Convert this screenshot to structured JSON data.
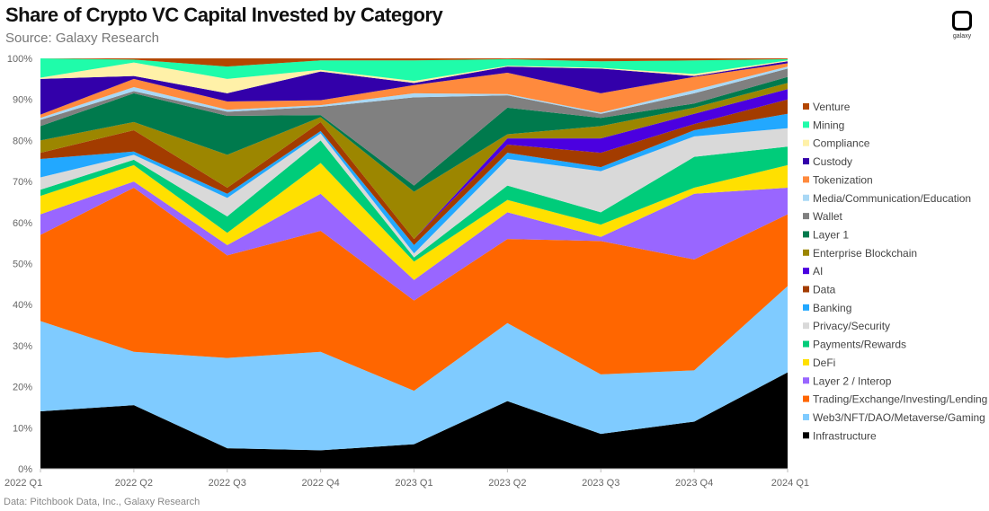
{
  "header": {
    "title": "Share of Crypto VC Capital Invested by Category",
    "subtitle": "Source: Galaxy Research",
    "logo_text": "galaxy"
  },
  "footer": {
    "source": "Data: Pitchbook Data, Inc., Galaxy Research"
  },
  "chart_data": {
    "type": "area",
    "stacked": true,
    "title": "Share of Crypto VC Capital Invested by Category",
    "xlabel": "",
    "ylabel": "",
    "ylim": [
      0,
      100
    ],
    "y_ticks": [
      "0%",
      "10%",
      "20%",
      "30%",
      "40%",
      "50%",
      "60%",
      "70%",
      "80%",
      "90%",
      "100%"
    ],
    "categories": [
      "2022 Q1",
      "2022 Q2",
      "2022 Q3",
      "2022 Q4",
      "2023 Q1",
      "2023 Q2",
      "2023 Q3",
      "2023 Q4",
      "2024 Q1"
    ],
    "legend_position": "right",
    "series": [
      {
        "name": "Infrastructure",
        "color": "#000000",
        "values": [
          14,
          15.5,
          5,
          4.5,
          6,
          16.5,
          8.5,
          11.5,
          23.5
        ]
      },
      {
        "name": "Web3/NFT/DAO/Metaverse/Gaming",
        "color": "#7fcbff",
        "values": [
          22,
          13,
          22,
          24,
          13,
          19,
          14.5,
          12.5,
          21
        ]
      },
      {
        "name": "Trading/Exchange/Investing/Lending",
        "color": "#ff6600",
        "values": [
          21,
          40,
          25,
          29.5,
          22,
          20.5,
          32.5,
          27,
          17.5
        ]
      },
      {
        "name": "Layer 2 / Interop",
        "color": "#9966ff",
        "values": [
          5,
          1.5,
          2.5,
          9,
          5,
          6.5,
          1,
          16,
          6.5
        ]
      },
      {
        "name": "DeFi",
        "color": "#ffe000",
        "values": [
          4.5,
          4,
          3,
          7.5,
          4.5,
          3,
          3,
          1.5,
          5.5
        ]
      },
      {
        "name": "Payments/Rewards",
        "color": "#00cc7a",
        "values": [
          1.5,
          1.3,
          4,
          5.5,
          1,
          3.5,
          3,
          7.5,
          4.5
        ]
      },
      {
        "name": "Privacy/Security",
        "color": "#d9d9d9",
        "values": [
          3,
          1.2,
          4.5,
          1.7,
          1,
          6.5,
          10,
          5,
          4.5
        ]
      },
      {
        "name": "Banking",
        "color": "#22a8ff",
        "values": [
          4.5,
          0.8,
          1,
          0.6,
          2,
          1.5,
          1,
          1.5,
          3.5
        ]
      },
      {
        "name": "Data",
        "color": "#a33c00",
        "values": [
          1.5,
          5.2,
          1.5,
          2.2,
          1.5,
          2,
          3.5,
          1.5,
          3.5
        ]
      },
      {
        "name": "AI",
        "color": "#4b00e0",
        "values": [
          0,
          0,
          0,
          0,
          0,
          1.5,
          3.5,
          2.5,
          2.5
        ]
      },
      {
        "name": "Enterprise Blockchain",
        "color": "#9c8600",
        "values": [
          3,
          2,
          8,
          1.2,
          11.5,
          1,
          3,
          1.5,
          1.5
        ]
      },
      {
        "name": "Layer 1",
        "color": "#007a4d",
        "values": [
          3.5,
          7,
          9.5,
          0.5,
          1.5,
          6.5,
          2,
          1,
          1.5
        ]
      },
      {
        "name": "Wallet",
        "color": "#808080",
        "values": [
          1.5,
          0.5,
          1,
          2,
          21.5,
          3,
          1,
          2.5,
          2
        ]
      },
      {
        "name": "Media/Communication/Education",
        "color": "#a9d8f5",
        "values": [
          0.5,
          1,
          0.5,
          0.4,
          1,
          0.3,
          0.3,
          0.8,
          0.5
        ]
      },
      {
        "name": "Tokenization",
        "color": "#ff8a3d",
        "values": [
          0.8,
          2,
          2,
          1.2,
          2,
          5.2,
          4.7,
          3.2,
          0.8
        ]
      },
      {
        "name": "Custody",
        "color": "#3300aa",
        "values": [
          8.7,
          0.7,
          2,
          7,
          0.5,
          1.5,
          6,
          0.2,
          0.5
        ]
      },
      {
        "name": "Compliance",
        "color": "#fff1a8",
        "values": [
          0.3,
          3.3,
          3.5,
          0.4,
          0.5,
          0.2,
          0.2,
          0.5,
          0.2
        ]
      },
      {
        "name": "Mining",
        "color": "#1ffcaa",
        "values": [
          4.7,
          0.7,
          3,
          2.3,
          5,
          1.6,
          1.6,
          3.3,
          0.3
        ]
      },
      {
        "name": "Venture",
        "color": "#b34700",
        "values": [
          0,
          0.3,
          2,
          0.5,
          0.5,
          0.2,
          0.7,
          0.5,
          0.2
        ]
      }
    ]
  }
}
